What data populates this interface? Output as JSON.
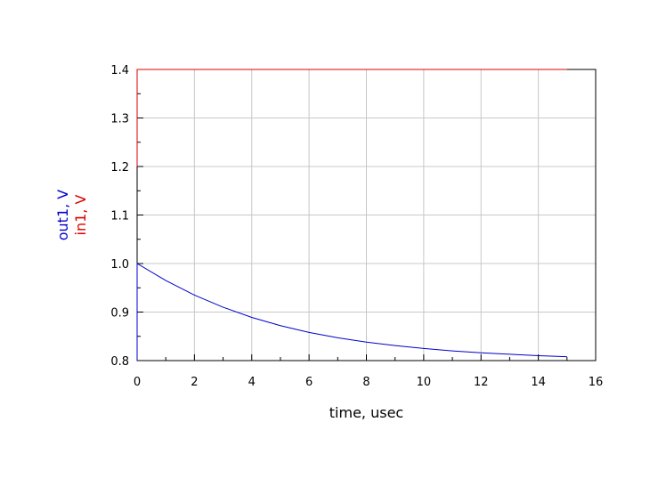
{
  "chart_data": {
    "type": "line",
    "xlabel": "time, usec",
    "ylabels": [
      {
        "text": "out1, V",
        "color": "#0000cc"
      },
      {
        "text": "in1, V",
        "color": "#dd0000"
      }
    ],
    "xlim": [
      0,
      16
    ],
    "ylim": [
      0.8,
      1.4
    ],
    "xticks": [
      0,
      2,
      4,
      6,
      8,
      10,
      12,
      14,
      16
    ],
    "xtick_labels": [
      "0",
      "2",
      "4",
      "6",
      "8",
      "10",
      "12",
      "14",
      "16"
    ],
    "yticks": [
      0.8,
      0.9,
      1.0,
      1.1,
      1.2,
      1.3,
      1.4
    ],
    "ytick_labels": [
      "0.8",
      "0.9",
      "1.0",
      "1.1",
      "1.2",
      "1.3",
      "1.4"
    ],
    "grid": true,
    "series": [
      {
        "name": "in1",
        "color": "#dd0000",
        "x": [
          0,
          0,
          15
        ],
        "y": [
          1.2,
          1.4,
          1.4
        ]
      },
      {
        "name": "out1",
        "color": "#0000cc",
        "x": [
          0,
          0,
          1,
          2,
          3,
          4,
          5,
          6,
          7,
          8,
          9,
          10,
          11,
          12,
          13,
          14,
          15
        ],
        "y": [
          0.8,
          1.0,
          0.965,
          0.935,
          0.91,
          0.889,
          0.872,
          0.858,
          0.847,
          0.838,
          0.831,
          0.825,
          0.82,
          0.816,
          0.813,
          0.81,
          0.808
        ]
      }
    ]
  }
}
